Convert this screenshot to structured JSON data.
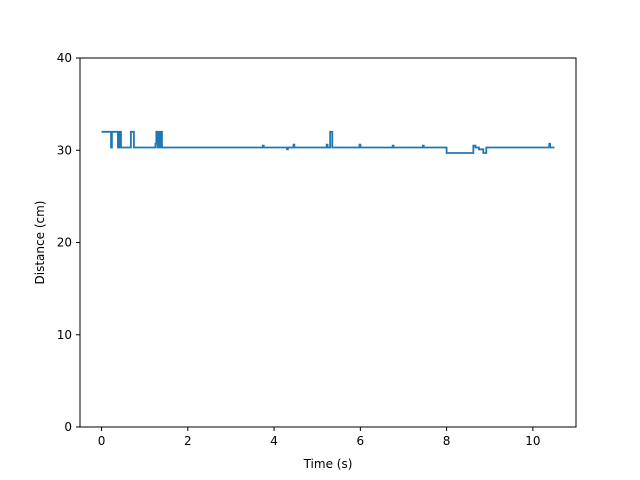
{
  "chart_data": {
    "type": "line",
    "title": "",
    "xlabel": "Time (s)",
    "ylabel": "Distance (cm)",
    "xlim": [
      -0.5,
      11.0
    ],
    "ylim": [
      0,
      40
    ],
    "xticks": [
      0,
      2,
      4,
      6,
      8,
      10
    ],
    "yticks": [
      0,
      10,
      20,
      30,
      40
    ],
    "xtick_labels": [
      "0",
      "2",
      "4",
      "6",
      "8",
      "10"
    ],
    "ytick_labels": [
      "0",
      "10",
      "20",
      "30",
      "40"
    ],
    "grid": false,
    "line_color": "#1f77b4",
    "series": [
      {
        "x": [
          0.0,
          0.22,
          0.22,
          0.24,
          0.24,
          0.27,
          0.27,
          0.38,
          0.38,
          0.41,
          0.41,
          0.45,
          0.45,
          0.68,
          0.68,
          0.75,
          0.75,
          1.25,
          1.25,
          1.27,
          1.27,
          1.3,
          1.3,
          1.32,
          1.32,
          1.34,
          1.34,
          1.37,
          1.37,
          1.4,
          1.4,
          3.74,
          3.74,
          3.76,
          3.76,
          4.3,
          4.3,
          4.32,
          4.32,
          4.45,
          4.45,
          4.47,
          4.47,
          5.22,
          5.22,
          5.24,
          5.24,
          5.3,
          5.3,
          5.35,
          5.35,
          5.98,
          5.98,
          6.0,
          6.0,
          6.75,
          6.75,
          6.77,
          6.77,
          7.45,
          7.45,
          7.47,
          7.47,
          8.0,
          8.0,
          8.62,
          8.62,
          8.67,
          8.67,
          8.75,
          8.75,
          8.85,
          8.85,
          8.92,
          8.92,
          8.95,
          8.95,
          10.38,
          10.38,
          10.4,
          10.4,
          10.5
        ],
        "y": [
          32.0,
          32.0,
          30.3,
          30.3,
          32.0,
          32.0,
          32.0,
          32.0,
          30.3,
          30.3,
          32.0,
          32.0,
          30.3,
          30.3,
          32.0,
          32.0,
          30.3,
          30.3,
          30.7,
          30.7,
          32.0,
          32.0,
          30.3,
          30.3,
          32.0,
          32.0,
          30.3,
          30.3,
          32.0,
          32.0,
          30.3,
          30.3,
          30.5,
          30.5,
          30.3,
          30.3,
          30.1,
          30.1,
          30.3,
          30.3,
          30.6,
          30.6,
          30.3,
          30.3,
          30.6,
          30.6,
          30.3,
          30.3,
          32.0,
          32.0,
          30.3,
          30.3,
          30.6,
          30.6,
          30.3,
          30.3,
          30.5,
          30.5,
          30.3,
          30.3,
          30.5,
          30.5,
          30.3,
          30.3,
          29.7,
          29.7,
          30.5,
          30.5,
          30.3,
          30.3,
          30.1,
          30.1,
          29.7,
          29.7,
          30.3,
          30.3,
          30.3,
          30.3,
          30.7,
          30.7,
          30.3,
          30.3
        ]
      }
    ]
  }
}
